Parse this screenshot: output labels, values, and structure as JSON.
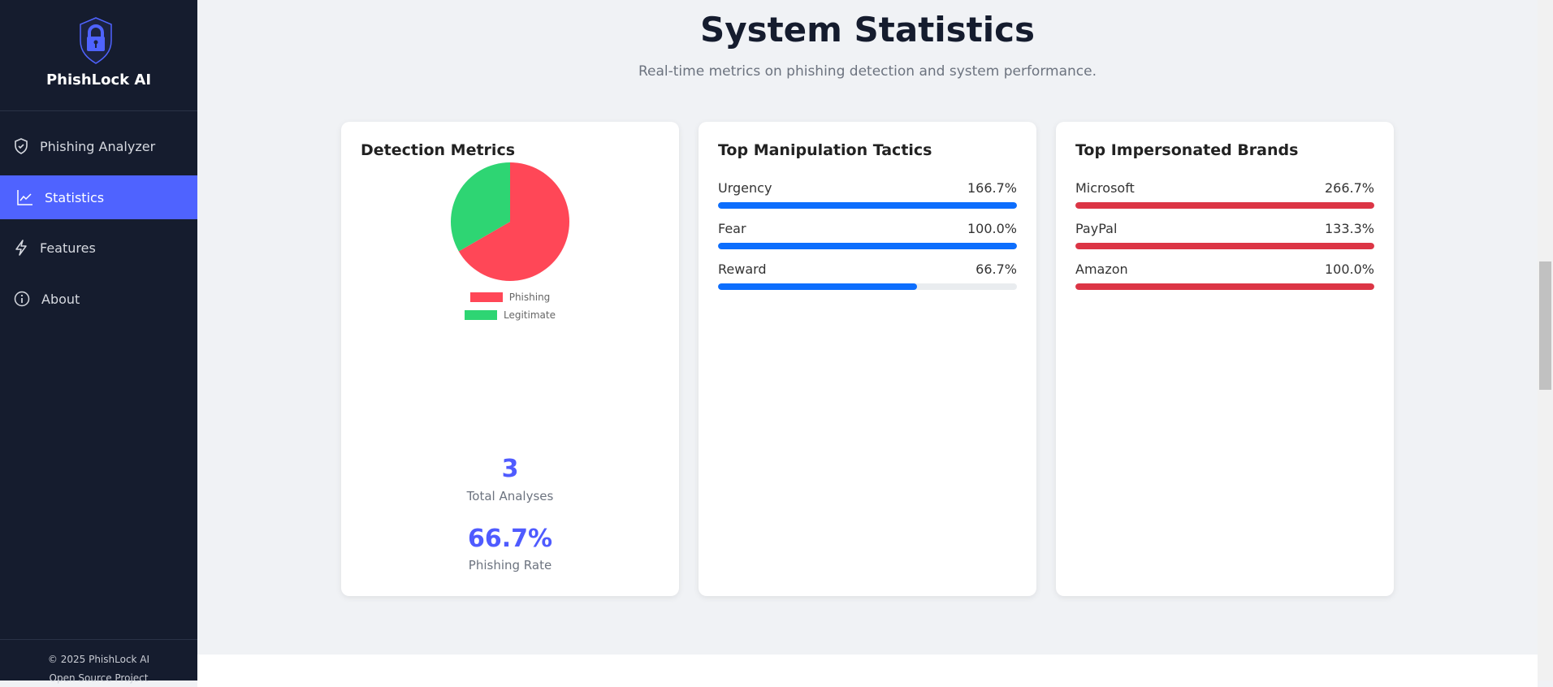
{
  "sidebar": {
    "brand": "PhishLock AI",
    "logo_icon": "shield-lock-icon",
    "items": [
      {
        "label": "Phishing Analyzer",
        "icon": "shield-check-icon"
      },
      {
        "label": "Statistics",
        "icon": "line-chart-icon",
        "active": true
      },
      {
        "label": "Features",
        "icon": "lightning-icon"
      },
      {
        "label": "About",
        "icon": "info-icon"
      }
    ],
    "copyright": "© 2025 PhishLock AI",
    "footer_note": "Open Source Project"
  },
  "header": {
    "title": "System Statistics",
    "subtitle": "Real-time metrics on phishing detection and system performance."
  },
  "detection": {
    "title": "Detection Metrics",
    "total": "3",
    "total_label": "Total Analyses",
    "rate": "66.7%",
    "rate_label": "Phishing Rate"
  },
  "chart_data": {
    "type": "pie",
    "categories": [
      "Phishing",
      "Legitimate"
    ],
    "values": [
      2,
      1
    ],
    "colors": [
      "#ff4757",
      "#2ed573"
    ],
    "legend": "bottom"
  },
  "tactics": {
    "title": "Top Manipulation Tactics",
    "color": "#0d6efd",
    "items": [
      {
        "label": "Urgency",
        "value": "166.7%",
        "pct": 166.7
      },
      {
        "label": "Fear",
        "value": "100.0%",
        "pct": 100
      },
      {
        "label": "Reward",
        "value": "66.7%",
        "pct": 66.7
      }
    ]
  },
  "brands": {
    "title": "Top Impersonated Brands",
    "color": "#dc3545",
    "items": [
      {
        "label": "Microsoft",
        "value": "266.7%",
        "pct": 266.7
      },
      {
        "label": "PayPal",
        "value": "133.3%",
        "pct": 133.3
      },
      {
        "label": "Amazon",
        "value": "100.0%",
        "pct": 100
      }
    ]
  }
}
